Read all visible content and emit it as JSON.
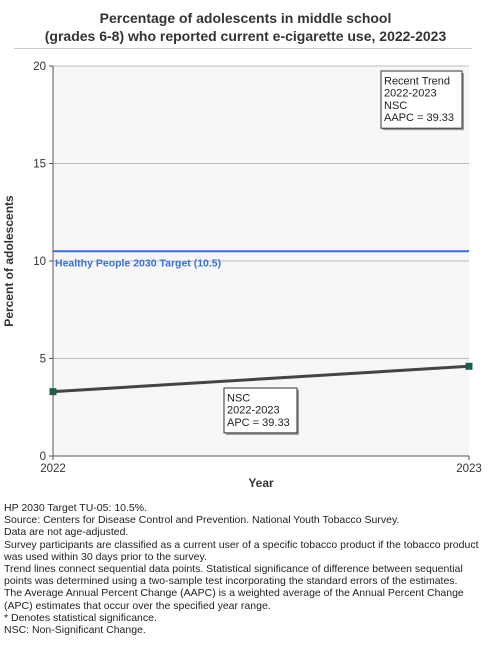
{
  "chart_data": {
    "type": "line",
    "title_lines": [
      "Percentage of adolescents in middle school",
      "(grades 6-8) who reported current e-cigarette use, 2022-2023"
    ],
    "xlabel": "Year",
    "ylabel": "Percent of adolescents",
    "x": [
      2022,
      2023
    ],
    "series": [
      {
        "values": [
          3.3,
          4.6
        ],
        "color": "#444444",
        "marker_color": "#1e5c4e"
      }
    ],
    "ylim": [
      0,
      20
    ],
    "yticks": [
      0,
      5,
      10,
      15,
      20
    ],
    "xticks": [
      "2022",
      "2023"
    ],
    "grid": true,
    "target": {
      "value": 10.5,
      "label": "Healthy People 2030 Target (10.5)",
      "color": "#3a6fd8"
    },
    "annotations": {
      "segment": [
        "NSC",
        "2022-2023",
        "APC = 39.33"
      ],
      "trend": [
        "Recent Trend",
        "2022-2023",
        "NSC",
        "AAPC = 39.33"
      ]
    }
  },
  "notes": [
    "HP 2030 Target TU-05: 10.5%.",
    "Source: Centers for Disease Control and Prevention. National Youth Tobacco Survey.",
    "Data are not age-adjusted.",
    "Survey participants are classified as a current user of a specific tobacco product if the tobacco product was used within 30 days prior to the survey.",
    "Trend lines connect sequential data points. Statistical significance of difference between sequential points was determined using a two-sample test incorporating the standard errors of the estimates.",
    "The Average Annual Percent Change (AAPC) is a weighted average of the Annual Percent Change (APC) estimates that occur over the specified year range.",
    "* Denotes statistical significance.",
    "NSC: Non-Significant Change."
  ]
}
